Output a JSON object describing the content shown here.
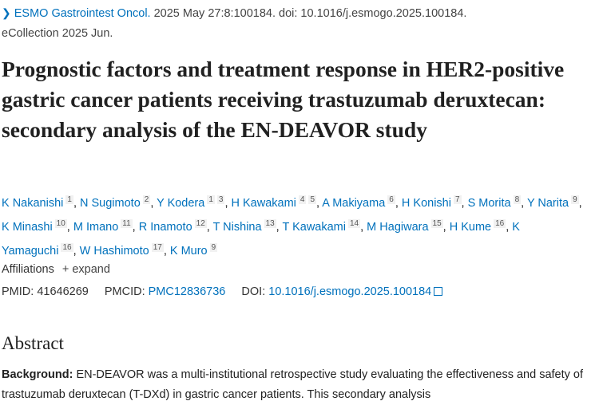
{
  "citation": {
    "journal": "ESMO Gastrointest Oncol.",
    "details": " 2025 May 27:8:100184. doi: 10.1016/j.esmogo.2025.100184.",
    "ecollection": "eCollection 2025 Jun."
  },
  "title": "Prognostic factors and treatment response in HER2-positive gastric cancer patients receiving trastuzumab deruxtecan: secondary analysis of the EN-DEAVOR study",
  "authors": [
    {
      "name": "K Nakanishi",
      "aff": "1"
    },
    {
      "name": "N Sugimoto",
      "aff": "2"
    },
    {
      "name": "Y Kodera",
      "aff": "1 3"
    },
    {
      "name": "H Kawakami",
      "aff": "4 5"
    },
    {
      "name": "A Makiyama",
      "aff": "6"
    },
    {
      "name": "H Konishi",
      "aff": "7"
    },
    {
      "name": "S Morita",
      "aff": "8"
    },
    {
      "name": "Y Narita",
      "aff": "9"
    },
    {
      "name": "K Minashi",
      "aff": "10"
    },
    {
      "name": "M Imano",
      "aff": "11"
    },
    {
      "name": "R Inamoto",
      "aff": "12"
    },
    {
      "name": "T Nishina",
      "aff": "13"
    },
    {
      "name": "T Kawakami",
      "aff": "14"
    },
    {
      "name": "M Hagiwara",
      "aff": "15"
    },
    {
      "name": "H Kume",
      "aff": "16"
    },
    {
      "name": "K Yamaguchi",
      "aff": "16"
    },
    {
      "name": "W Hashimoto",
      "aff": "17"
    },
    {
      "name": "K Muro",
      "aff": "9"
    }
  ],
  "affiliations": {
    "label": "Affiliations",
    "expand": "+ expand"
  },
  "ids": {
    "pmid_label": "PMID:",
    "pmid": "41646269",
    "pmcid_label": "PMCID:",
    "pmcid": "PMC12836736",
    "doi_label": "DOI:",
    "doi": "10.1016/j.esmogo.2025.100184"
  },
  "abstract": {
    "heading": "Abstract",
    "background_label": "Background:",
    "background_text": " EN-DEAVOR was a multi-institutional retrospective study evaluating the effectiveness and safety of trastuzumab deruxtecan (T-DXd) in gastric cancer patients. This secondary analysis"
  }
}
